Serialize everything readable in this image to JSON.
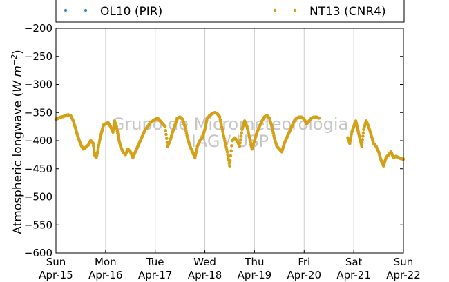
{
  "chart_data": {
    "type": "scatter",
    "title": "",
    "ylabel": "Atmospheric longwave",
    "ylabel_unit": "W m",
    "ylabel_exp": "−2",
    "ylim": [
      -600,
      -200
    ],
    "yticks": [
      -200,
      -250,
      -300,
      -350,
      -400,
      -450,
      -500,
      -550,
      -600
    ],
    "ytick_labels": [
      "−200",
      "−250",
      "−300",
      "−350",
      "−400",
      "−450",
      "−500",
      "−550",
      "−600"
    ],
    "xlim": [
      0,
      7
    ],
    "xticks": [
      {
        "x": 0,
        "day": "Sun",
        "date": "Apr-15"
      },
      {
        "x": 1,
        "day": "Mon",
        "date": "Apr-16"
      },
      {
        "x": 2,
        "day": "Tue",
        "date": "Apr-17"
      },
      {
        "x": 3,
        "day": "Wed",
        "date": "Apr-18"
      },
      {
        "x": 4,
        "day": "Thu",
        "date": "Apr-19"
      },
      {
        "x": 5,
        "day": "Fri",
        "date": "Apr-20"
      },
      {
        "x": 6,
        "day": "Sat",
        "date": "Apr-21"
      },
      {
        "x": 7,
        "day": "Sun",
        "date": "Apr-22"
      }
    ],
    "grid": "vertical",
    "legend": "top",
    "watermark": [
      "Grupo de Micrometeorologia",
      "IAG / USP"
    ],
    "series": [
      {
        "name": "OL10 (PIR)",
        "color": "#4682b4",
        "points": []
      },
      {
        "name": "NT13 (CNR4)",
        "color": "#d4a017",
        "points": [
          [
            0.0,
            -362
          ],
          [
            0.05,
            -360
          ],
          [
            0.1,
            -358
          ],
          [
            0.15,
            -357
          ],
          [
            0.2,
            -355
          ],
          [
            0.25,
            -354
          ],
          [
            0.3,
            -356
          ],
          [
            0.35,
            -365
          ],
          [
            0.4,
            -380
          ],
          [
            0.45,
            -395
          ],
          [
            0.5,
            -407
          ],
          [
            0.55,
            -415
          ],
          [
            0.6,
            -412
          ],
          [
            0.65,
            -408
          ],
          [
            0.7,
            -400
          ],
          [
            0.75,
            -405
          ],
          [
            0.78,
            -425
          ],
          [
            0.81,
            -430
          ],
          [
            0.84,
            -420
          ],
          [
            0.88,
            -400
          ],
          [
            0.92,
            -385
          ],
          [
            0.96,
            -372
          ],
          [
            1.0,
            -370
          ],
          [
            1.05,
            -368
          ],
          [
            1.1,
            -375
          ],
          [
            1.15,
            -385
          ],
          [
            1.18,
            -365
          ],
          [
            1.22,
            -375
          ],
          [
            1.26,
            -395
          ],
          [
            1.3,
            -410
          ],
          [
            1.35,
            -420
          ],
          [
            1.4,
            -425
          ],
          [
            1.45,
            -415
          ],
          [
            1.5,
            -420
          ],
          [
            1.55,
            -430
          ],
          [
            1.6,
            -420
          ],
          [
            1.65,
            -410
          ],
          [
            1.7,
            -400
          ],
          [
            1.75,
            -390
          ],
          [
            1.8,
            -380
          ],
          [
            1.85,
            -375
          ],
          [
            1.9,
            -368
          ],
          [
            1.95,
            -365
          ],
          [
            2.0,
            -362
          ],
          [
            2.05,
            -360
          ],
          [
            2.1,
            -365
          ],
          [
            2.15,
            -370
          ],
          [
            2.2,
            -375
          ],
          [
            2.25,
            -410
          ],
          [
            2.3,
            -400
          ],
          [
            2.35,
            -385
          ],
          [
            2.4,
            -372
          ],
          [
            2.45,
            -360
          ],
          [
            2.5,
            -358
          ],
          [
            2.55,
            -362
          ],
          [
            2.6,
            -375
          ],
          [
            2.65,
            -395
          ],
          [
            2.7,
            -410
          ],
          [
            2.75,
            -420
          ],
          [
            2.8,
            -430
          ],
          [
            2.85,
            -410
          ],
          [
            2.9,
            -400
          ],
          [
            2.95,
            -395
          ],
          [
            3.0,
            -380
          ],
          [
            3.05,
            -360
          ],
          [
            3.1,
            -355
          ],
          [
            3.15,
            -352
          ],
          [
            3.2,
            -350
          ],
          [
            3.25,
            -352
          ],
          [
            3.3,
            -358
          ],
          [
            3.35,
            -380
          ],
          [
            3.4,
            -400
          ],
          [
            3.45,
            -420
          ],
          [
            3.5,
            -445
          ],
          [
            3.55,
            -400
          ],
          [
            3.6,
            -395
          ],
          [
            3.65,
            -400
          ],
          [
            3.7,
            -410
          ],
          [
            3.75,
            -380
          ],
          [
            3.8,
            -365
          ],
          [
            3.85,
            -375
          ],
          [
            3.9,
            -395
          ],
          [
            3.95,
            -415
          ],
          [
            4.0,
            -400
          ],
          [
            4.05,
            -385
          ],
          [
            4.1,
            -375
          ],
          [
            4.15,
            -365
          ],
          [
            4.2,
            -358
          ],
          [
            4.25,
            -355
          ],
          [
            4.3,
            -360
          ],
          [
            4.35,
            -375
          ],
          [
            4.4,
            -395
          ],
          [
            4.45,
            -410
          ],
          [
            4.5,
            -415
          ],
          [
            4.55,
            -420
          ],
          [
            4.6,
            -405
          ],
          [
            4.65,
            -395
          ],
          [
            4.7,
            -385
          ],
          [
            4.75,
            -375
          ],
          [
            4.8,
            -365
          ],
          [
            4.85,
            -360
          ],
          [
            4.9,
            -358
          ],
          [
            4.95,
            -358
          ],
          [
            5.0,
            -362
          ],
          [
            5.05,
            -370
          ],
          [
            5.1,
            -365
          ],
          [
            5.15,
            -360
          ],
          [
            5.2,
            -358
          ],
          [
            5.25,
            -358
          ],
          [
            5.3,
            -360
          ],
          [
            5.88,
            -395
          ],
          [
            5.92,
            -405
          ],
          [
            5.96,
            -385
          ],
          [
            6.0,
            -375
          ],
          [
            6.04,
            -365
          ],
          [
            6.08,
            -380
          ],
          [
            6.12,
            -395
          ],
          [
            6.16,
            -410
          ],
          [
            6.2,
            -380
          ],
          [
            6.25,
            -365
          ],
          [
            6.3,
            -375
          ],
          [
            6.35,
            -390
          ],
          [
            6.4,
            -405
          ],
          [
            6.45,
            -410
          ],
          [
            6.5,
            -420
          ],
          [
            6.55,
            -435
          ],
          [
            6.6,
            -445
          ],
          [
            6.65,
            -430
          ],
          [
            6.7,
            -425
          ],
          [
            6.75,
            -420
          ],
          [
            6.8,
            -430
          ],
          [
            6.85,
            -428
          ],
          [
            6.9,
            -430
          ],
          [
            6.95,
            -432
          ],
          [
            7.0,
            -433
          ]
        ]
      }
    ]
  }
}
